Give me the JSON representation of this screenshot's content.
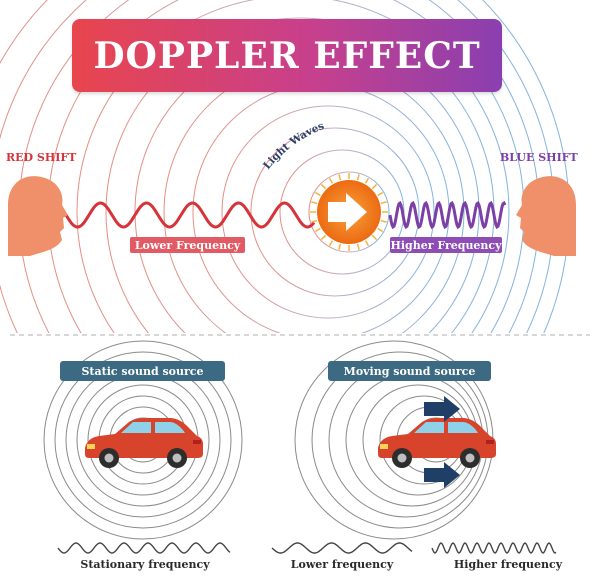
{
  "title": "DOPPLER EFFECT",
  "left_label": "RED SHIFT",
  "right_label": "BLUE SHIFT",
  "center_label": "Light Waves",
  "lower_frequency_tag": "Lower Frequency",
  "higher_frequency_tag": "Higher Frequency",
  "static_source": {
    "label": "Static sound source",
    "frequency_label": "Stationary frequency"
  },
  "moving_source": {
    "label": "Moving sound source",
    "lower_frequency_label": "Lower frequency",
    "higher_frequency_label": "Higher frequency"
  },
  "colors": {
    "red_shift": "#d6333a",
    "blue_shift": "#7b3fa6",
    "source_orange": "#f07d1e",
    "sound_pill": "#3c6a82"
  }
}
